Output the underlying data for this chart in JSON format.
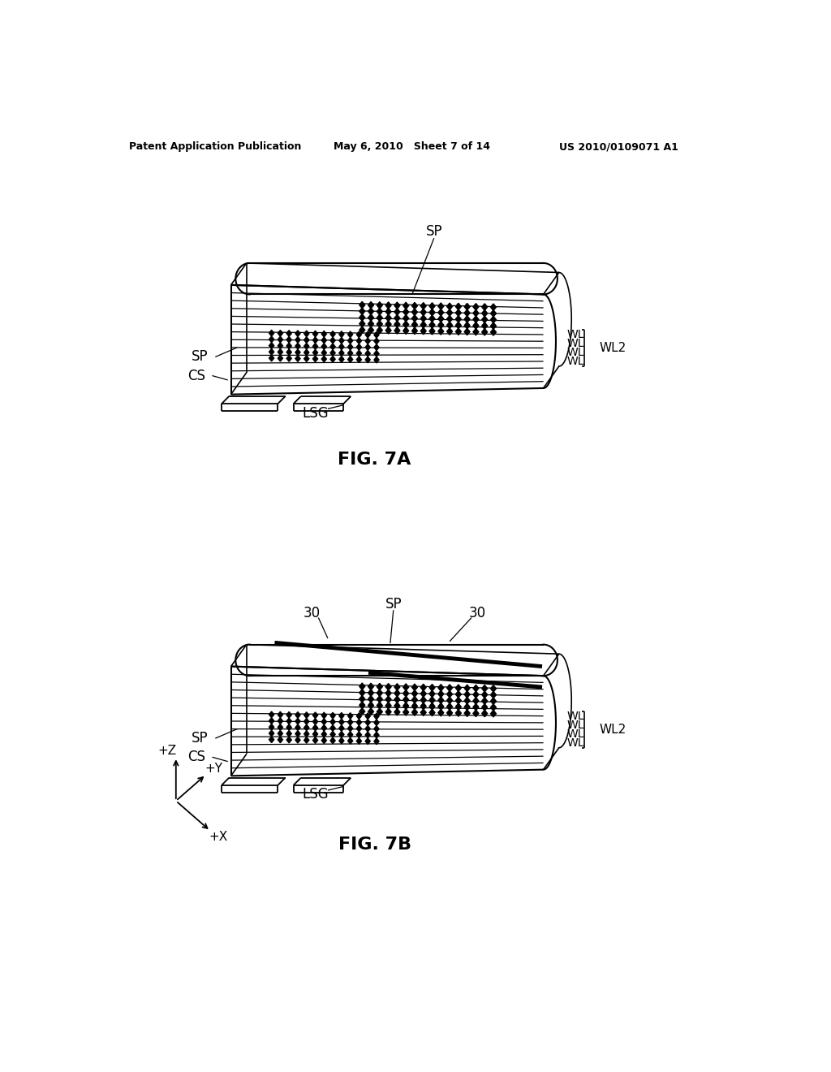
{
  "header_left": "Patent Application Publication",
  "header_middle": "May 6, 2010   Sheet 7 of 14",
  "header_right": "US 2010/0109071 A1",
  "fig7a_title": "FIG. 7A",
  "fig7b_title": "FIG. 7B",
  "bg_color": "#ffffff",
  "line_color": "#000000"
}
